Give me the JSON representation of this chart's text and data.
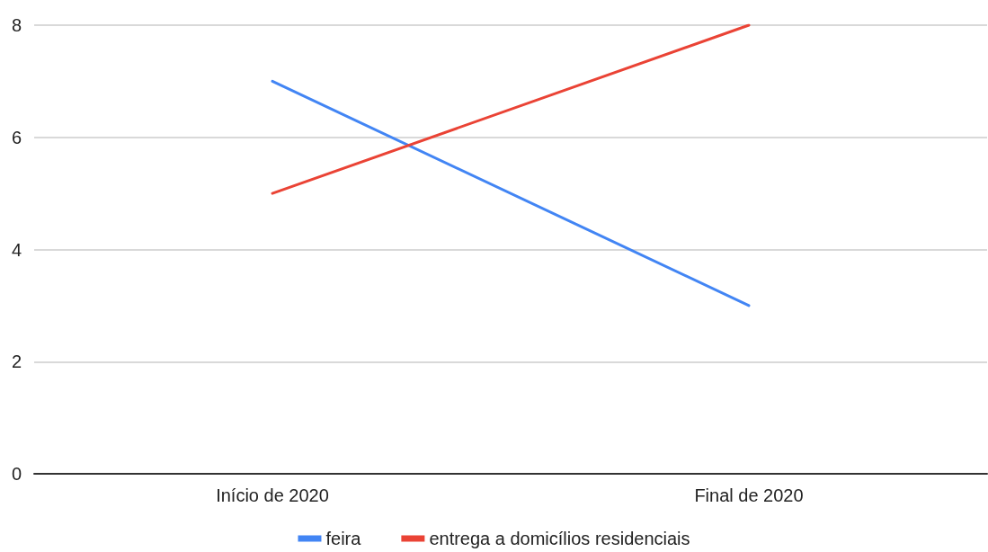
{
  "chart_data": {
    "type": "line",
    "categories": [
      "Início de 2020",
      "Final de 2020"
    ],
    "series": [
      {
        "name": "feira",
        "color": "#4285f4",
        "values": [
          7,
          3
        ]
      },
      {
        "name": "entrega a domicílios residenciais",
        "color": "#ea4335",
        "values": [
          5,
          8
        ]
      }
    ],
    "ylim": [
      0,
      8
    ],
    "yticks": [
      0,
      2,
      4,
      6,
      8
    ],
    "grid": "y",
    "legend": "bottom",
    "marker": "none",
    "line_style": "solid"
  }
}
